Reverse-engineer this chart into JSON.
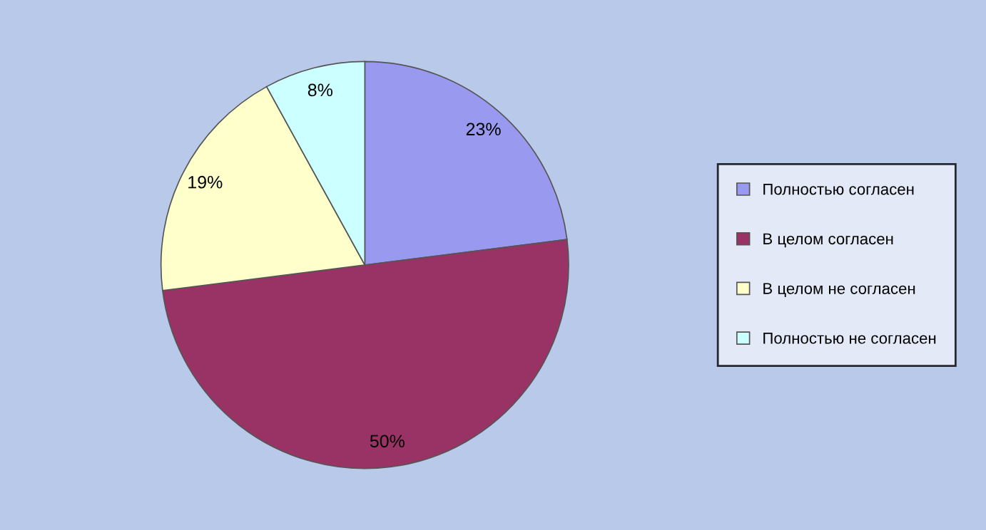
{
  "chart_data": {
    "type": "pie",
    "categories": [
      "Полностью согласен",
      "В целом согласен",
      "В целом не согласен",
      "Полностью не согласен"
    ],
    "values": [
      23,
      50,
      19,
      8
    ],
    "colors": [
      "#9999f0",
      "#993366",
      "#ffffcc",
      "#ccffff"
    ],
    "value_labels": [
      "23%",
      "50%",
      "19%",
      "8%"
    ],
    "legend": "right"
  }
}
